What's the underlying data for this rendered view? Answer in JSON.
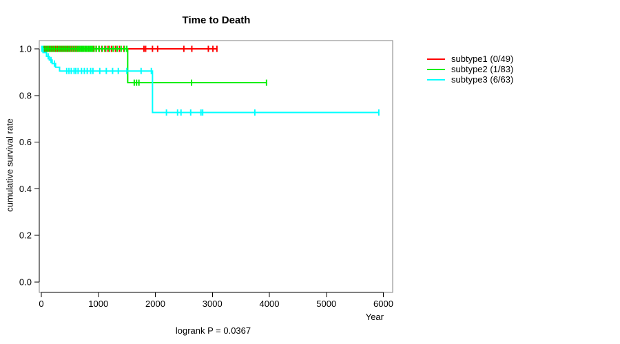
{
  "chart_data": {
    "type": "line",
    "chart_kind": "kaplan-meier-step-curves",
    "title": "Time to Death",
    "xlabel": "Year",
    "ylabel": "cumulative survival rate",
    "annotation": "logrank P = 0.0367",
    "xlim": [
      0,
      6000
    ],
    "ylim": [
      0.0,
      1.0
    ],
    "xticks": [
      0,
      1000,
      2000,
      3000,
      4000,
      5000,
      6000
    ],
    "yticks": [
      0.0,
      0.2,
      0.4,
      0.6,
      0.8,
      1.0
    ],
    "grid": false,
    "legend_position": "right-outside",
    "frame_color": "#808080",
    "axis_color": "#000000",
    "series": [
      {
        "name": "subtype1 (0/49)",
        "color": "#ff0000",
        "steps": [
          [
            0,
            1.0
          ],
          [
            3080,
            1.0
          ]
        ],
        "censor_times": [
          25,
          55,
          85,
          120,
          150,
          185,
          215,
          250,
          280,
          315,
          350,
          385,
          420,
          455,
          490,
          525,
          560,
          595,
          630,
          665,
          705,
          745,
          785,
          825,
          870,
          915,
          960,
          1010,
          1060,
          1115,
          1170,
          1230,
          1300,
          1370,
          1450,
          1800,
          1830,
          1950,
          2040,
          2500,
          2640,
          2930,
          3010,
          3080
        ]
      },
      {
        "name": "subtype2 (1/83)",
        "color": "#00ee00",
        "steps": [
          [
            0,
            1.0
          ],
          [
            1515,
            0.855
          ],
          [
            3950,
            0.855
          ]
        ],
        "censor_times": [
          40,
          70,
          100,
          130,
          165,
          200,
          230,
          265,
          300,
          330,
          365,
          400,
          435,
          470,
          500,
          535,
          570,
          605,
          640,
          670,
          695,
          720,
          745,
          770,
          795,
          820,
          845,
          870,
          895,
          925,
          965,
          1015,
          1070,
          1130,
          1195,
          1260,
          1330,
          1400,
          1460,
          1500,
          1630,
          1670,
          1712,
          2635,
          3950
        ]
      },
      {
        "name": "subtype3 (6/63)",
        "color": "#00ffff",
        "steps": [
          [
            0,
            1.0
          ],
          [
            30,
            0.984
          ],
          [
            90,
            0.968
          ],
          [
            140,
            0.952
          ],
          [
            190,
            0.937
          ],
          [
            250,
            0.921
          ],
          [
            320,
            0.905
          ],
          [
            1950,
            0.727
          ],
          [
            5920,
            0.727
          ]
        ],
        "censor_times": [
          8,
          22,
          120,
          170,
          230,
          445,
          485,
          525,
          575,
          605,
          645,
          705,
          755,
          805,
          865,
          905,
          1025,
          1140,
          1250,
          1350,
          1500,
          1750,
          1930,
          2195,
          2390,
          2450,
          2620,
          2800,
          2830,
          3745,
          5920
        ]
      }
    ]
  }
}
